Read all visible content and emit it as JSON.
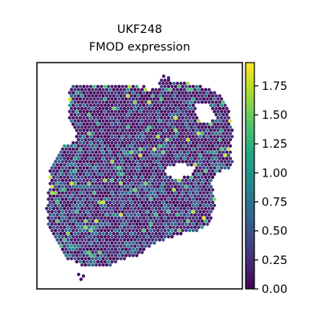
{
  "chart_data": {
    "type": "scatter",
    "title": "UKF248",
    "subtitle": "FMOD expression",
    "xlabel": "",
    "ylabel": "",
    "colormap": "viridis",
    "colorbar": {
      "vmin": 0.0,
      "vmax": 1.95,
      "ticks": [
        0.0,
        0.25,
        0.5,
        0.75,
        1.0,
        1.25,
        1.5,
        1.75
      ],
      "tick_labels": [
        "0.00",
        "0.25",
        "0.50",
        "0.75",
        "1.00",
        "1.25",
        "1.50",
        "1.75"
      ]
    },
    "grid": false,
    "legend": "colorbar-right",
    "colors": {
      "low": "#440154",
      "mid": "#21918c",
      "high": "#fde725",
      "frame": "#000000",
      "background": "#ffffff"
    }
  }
}
